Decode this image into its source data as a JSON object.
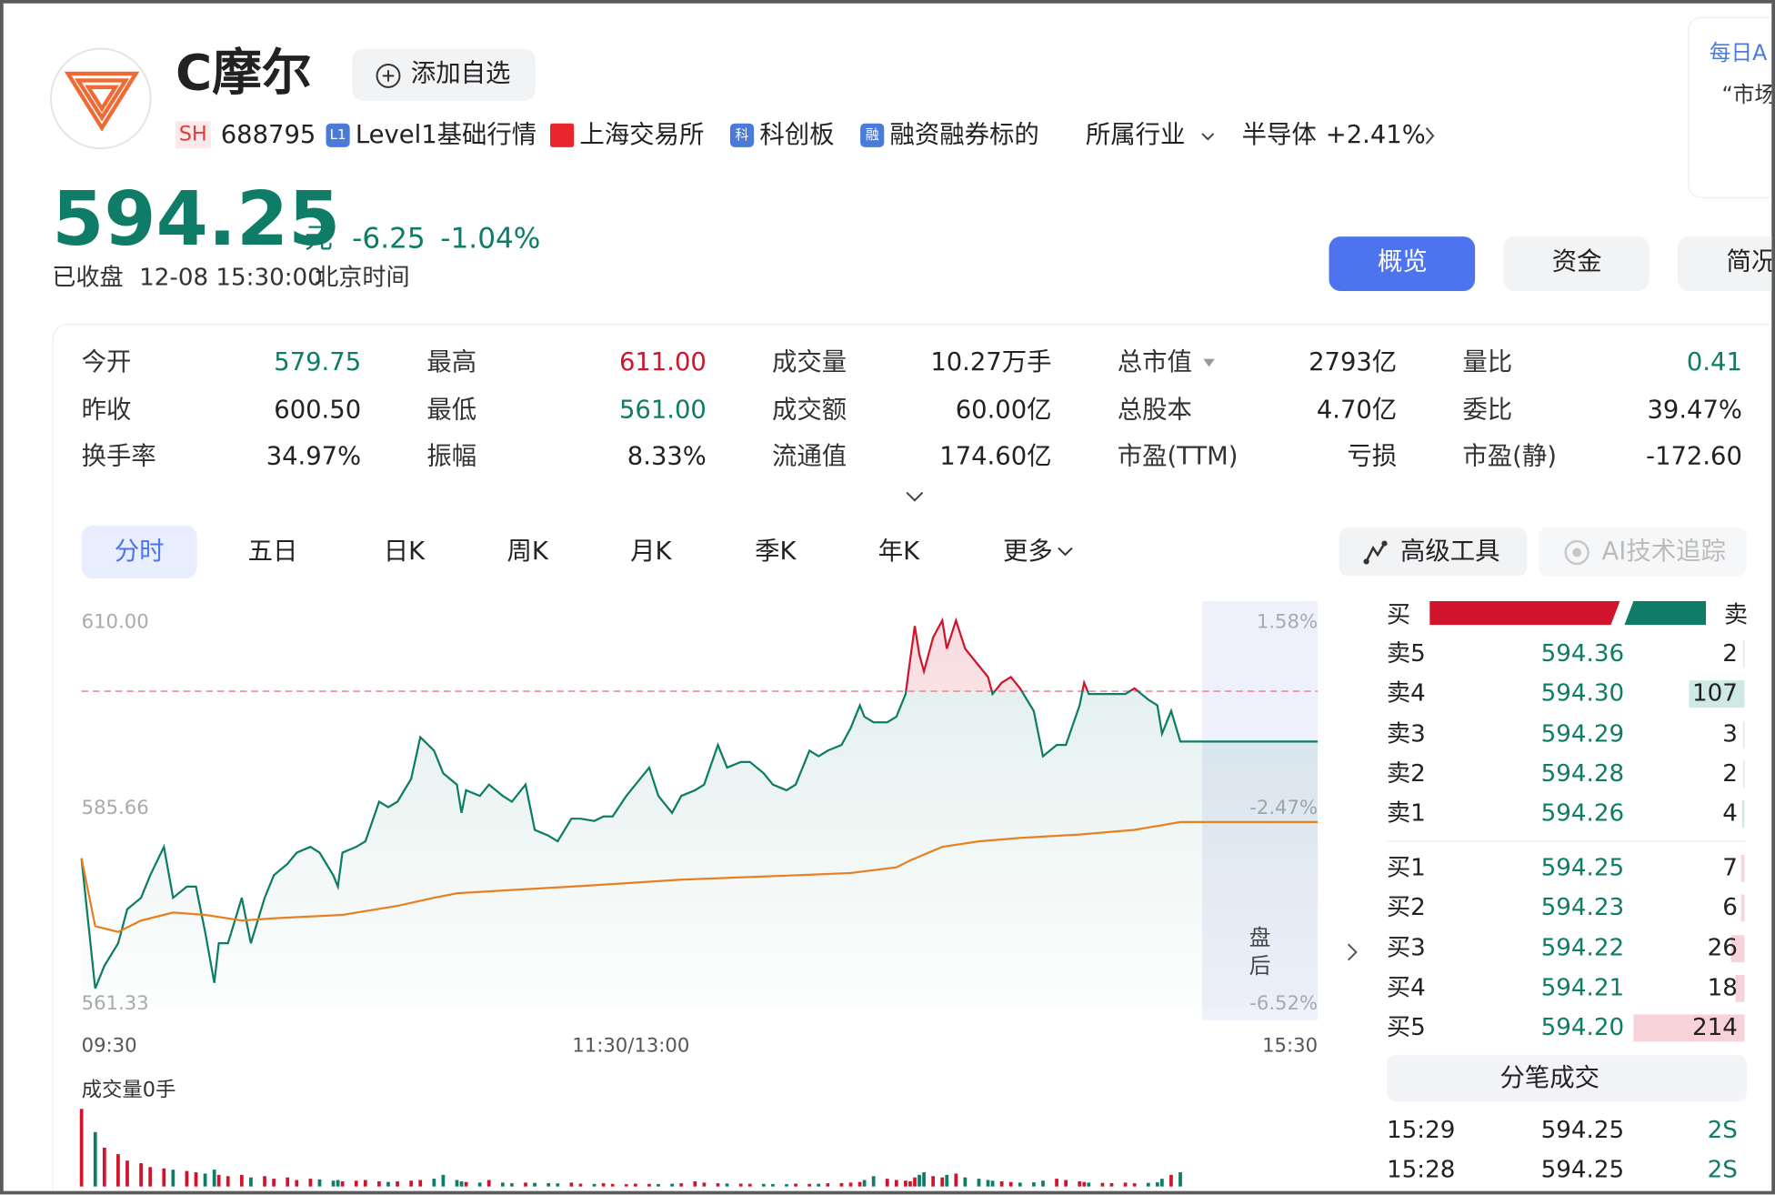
{
  "header": {
    "name": "C摩尔",
    "add_button": "添加自选",
    "exchange": "SH",
    "code": "688795",
    "tags": [
      {
        "icon": "L1",
        "text": "Level1基础行情"
      },
      {
        "icon": "",
        "text": "上海交易所"
      },
      {
        "icon": "科",
        "text": "科创板"
      },
      {
        "icon": "融",
        "text": "融资融券标的"
      }
    ],
    "industry_label": "所属行业",
    "industry": "半导体",
    "industry_change": "+2.41%"
  },
  "side_panel": {
    "title": "每日A",
    "text": "“市场"
  },
  "quote": {
    "price": "594.25",
    "unit": "元",
    "change": "-6.25",
    "change_pct": "-1.04%",
    "status": "已收盘",
    "time": "12-08 15:30:00",
    "timezone": "北京时间",
    "color": "#0e7c66"
  },
  "tabs": [
    "概览",
    "资金",
    "简况"
  ],
  "stats": [
    [
      {
        "label": "今开",
        "value": "579.75",
        "color": "#0e7c66"
      },
      {
        "label": "最高",
        "value": "611.00",
        "color": "#d0142c"
      },
      {
        "label": "成交量",
        "value": "10.27万手",
        "color": "#222"
      },
      {
        "label": "总市值",
        "value": "2793亿",
        "color": "#222"
      },
      {
        "label": "量比",
        "value": "0.41",
        "color": "#0e7c66"
      }
    ],
    [
      {
        "label": "昨收",
        "value": "600.50",
        "color": "#222"
      },
      {
        "label": "最低",
        "value": "561.00",
        "color": "#0e7c66"
      },
      {
        "label": "成交额",
        "value": "60.00亿",
        "color": "#222"
      },
      {
        "label": "总股本",
        "value": "4.70亿",
        "color": "#222"
      },
      {
        "label": "委比",
        "value": "39.47%",
        "color": "#222"
      }
    ],
    [
      {
        "label": "换手率",
        "value": "34.97%",
        "color": "#222"
      },
      {
        "label": "振幅",
        "value": "8.33%",
        "color": "#222"
      },
      {
        "label": "流通值",
        "value": "174.60亿",
        "color": "#222"
      },
      {
        "label": "市盈(TTM)",
        "value": "亏损",
        "color": "#222"
      },
      {
        "label": "市盈(静)",
        "value": "-172.60",
        "color": "#222"
      }
    ]
  ],
  "period_tabs": [
    "分时",
    "五日",
    "日K",
    "周K",
    "月K",
    "季K",
    "年K",
    "更多"
  ],
  "tools": [
    "高级工具",
    "AI技术追踪"
  ],
  "chart_data": {
    "type": "line",
    "ylim": [
      561.33,
      610
    ],
    "yticks": [
      {
        "value": 610,
        "label": "610.00"
      },
      {
        "value": 585.66,
        "label": "585.66"
      },
      {
        "value": 561.33,
        "label": "561.33"
      }
    ],
    "y2lim": [
      -6.52,
      1.58
    ],
    "y2ticks": [
      {
        "value": 1.58,
        "label": "1.58%"
      },
      {
        "value": -2.47,
        "label": "-2.47%"
      },
      {
        "value": -6.52,
        "label": "-6.52%"
      }
    ],
    "xlim": [
      0,
      270
    ],
    "xticks": [
      {
        "value": 0,
        "label": "09:30"
      },
      {
        "value": 120,
        "label": "11:30/13:00"
      },
      {
        "value": 270,
        "label": "15:30"
      }
    ],
    "reference_line": 600.5,
    "reference_color": "#f08a96",
    "after_hours_label": "盘后",
    "series": [
      {
        "color": "#0e7c66",
        "up_color": "#d0142c",
        "x": [
          0,
          3,
          5,
          8,
          10,
          13,
          15,
          18,
          20,
          23,
          25,
          27,
          29,
          30,
          32,
          35,
          37,
          40,
          42,
          45,
          47,
          50,
          52,
          55,
          56,
          57,
          60,
          62,
          65,
          67,
          69,
          72,
          74,
          77,
          79,
          82,
          83,
          84,
          87,
          89,
          92,
          94,
          97,
          99,
          102,
          104,
          107,
          109,
          112,
          114,
          116,
          119,
          121,
          124,
          126,
          129,
          131,
          134,
          136,
          139,
          141,
          144,
          146,
          149,
          151,
          154,
          156,
          159,
          161,
          163,
          166,
          168,
          170,
          171,
          173,
          176,
          178,
          180,
          181,
          182,
          183,
          184,
          186,
          188,
          189,
          191,
          193,
          196,
          198,
          199,
          201,
          203,
          205,
          208,
          210,
          213,
          215,
          218,
          219,
          220,
          223,
          225,
          228,
          230,
          233,
          235,
          236,
          238,
          240,
          270
        ],
        "values": [
          579.75,
          563.57,
          566.38,
          569.2,
          573.42,
          574.83,
          577.64,
          581.16,
          574.83,
          576.23,
          576.23,
          570.6,
          564.27,
          569.2,
          569.2,
          574.83,
          569.2,
          574.83,
          577.64,
          579.05,
          580.45,
          581.16,
          580.45,
          577.64,
          576.23,
          580.45,
          581.16,
          581.86,
          586.78,
          586.08,
          586.78,
          589.6,
          594.8,
          593.12,
          590.3,
          588.9,
          585.38,
          588.19,
          587.49,
          588.9,
          587.49,
          586.78,
          588.9,
          583.27,
          582.56,
          581.86,
          584.67,
          584.67,
          584.39,
          584.95,
          584.95,
          587.49,
          588.9,
          591.01,
          587.49,
          585.38,
          587.49,
          588.19,
          588.9,
          593.82,
          591.01,
          591.71,
          591.71,
          590.3,
          588.9,
          588.19,
          588.9,
          593.12,
          592.41,
          593.12,
          593.82,
          595.93,
          598.74,
          597.34,
          596.63,
          596.63,
          597.34,
          600.15,
          604.37,
          608.59,
          605.08,
          602.97,
          607.19,
          609.3,
          605.78,
          609.3,
          605.78,
          603.67,
          602.26,
          600.15,
          601.56,
          602.26,
          600.85,
          598.04,
          592.41,
          593.82,
          593.82,
          598.74,
          601.56,
          600.15,
          600.15,
          600.15,
          600.15,
          600.85,
          599.45,
          598.74,
          595.23,
          598.04,
          594.25,
          594.25
        ]
      },
      {
        "color": "#e8801f",
        "x": [
          0,
          3,
          8,
          13,
          20,
          27,
          35,
          42,
          57,
          69,
          77,
          82,
          94,
          107,
          119,
          131,
          144,
          156,
          168,
          178,
          181,
          188,
          196,
          205,
          218,
          230,
          240,
          270
        ],
        "values": [
          579.75,
          571.31,
          570.6,
          572.01,
          573,
          572.71,
          572.01,
          572.29,
          572.71,
          573.84,
          574.83,
          575.39,
          575.81,
          576.23,
          576.65,
          577.08,
          577.36,
          577.64,
          577.92,
          578.62,
          579.47,
          581.16,
          581.86,
          582.28,
          582.7,
          583.27,
          584.25,
          584.25
        ]
      }
    ],
    "volume": {
      "label": "成交量0手",
      "ylim": [
        0,
        7000
      ],
      "up_color": "#d0142c",
      "down_color": "#0e7c66",
      "x": [
        0,
        3,
        5,
        8,
        10,
        13,
        15,
        18,
        20,
        23,
        25,
        27,
        29,
        30,
        32,
        35,
        37,
        40,
        42,
        45,
        47,
        50,
        52,
        55,
        56,
        57,
        60,
        62,
        65,
        67,
        69,
        72,
        74,
        77,
        79,
        82,
        83,
        84,
        87,
        89,
        92,
        94,
        97,
        99,
        102,
        104,
        107,
        109,
        112,
        114,
        116,
        119,
        121,
        124,
        126,
        129,
        131,
        134,
        136,
        139,
        141,
        144,
        146,
        149,
        151,
        154,
        156,
        159,
        161,
        163,
        166,
        168,
        170,
        171,
        173,
        176,
        178,
        180,
        181,
        182,
        183,
        184,
        186,
        188,
        189,
        191,
        193,
        196,
        198,
        199,
        201,
        203,
        205,
        208,
        210,
        213,
        215,
        218,
        219,
        220,
        223,
        225,
        228,
        230,
        233,
        235,
        236,
        238,
        240
      ],
      "values": [
        6000,
        4200,
        3000,
        2500,
        2000,
        1800,
        1500,
        1400,
        1300,
        1200,
        1100,
        1000,
        1300,
        900,
        800,
        900,
        700,
        800,
        600,
        700,
        500,
        600,
        550,
        450,
        500,
        400,
        450,
        500,
        400,
        350,
        400,
        450,
        500,
        600,
        900,
        500,
        400,
        350,
        300,
        500,
        300,
        250,
        300,
        280,
        260,
        240,
        300,
        220,
        200,
        250,
        200,
        180,
        220,
        200,
        190,
        210,
        250,
        400,
        300,
        250,
        230,
        220,
        210,
        200,
        190,
        180,
        220,
        200,
        210,
        250,
        260,
        300,
        350,
        500,
        800,
        600,
        500,
        450,
        400,
        700,
        900,
        1100,
        800,
        700,
        900,
        1000,
        700,
        600,
        500,
        450,
        400,
        350,
        300,
        320,
        450,
        600,
        500,
        400,
        350,
        300,
        280,
        260,
        300,
        250,
        280,
        320,
        600,
        900,
        1100
      ]
    }
  },
  "order_book": {
    "buy": "买",
    "sell": "卖",
    "ask_bar_color": "#cfe9e4",
    "bid_bar_color": "#f8d3d9",
    "asks": [
      {
        "label": "卖5",
        "price": "594.36",
        "qty": 2
      },
      {
        "label": "卖4",
        "price": "594.30",
        "qty": 107
      },
      {
        "label": "卖3",
        "price": "594.29",
        "qty": 3
      },
      {
        "label": "卖2",
        "price": "594.28",
        "qty": 2
      },
      {
        "label": "卖1",
        "price": "594.26",
        "qty": 4
      }
    ],
    "bids": [
      {
        "label": "买1",
        "price": "594.25",
        "qty": 7
      },
      {
        "label": "买2",
        "price": "594.23",
        "qty": 6
      },
      {
        "label": "买3",
        "price": "594.22",
        "qty": 26
      },
      {
        "label": "买4",
        "price": "594.21",
        "qty": 18
      },
      {
        "label": "买5",
        "price": "594.20",
        "qty": 214
      }
    ]
  },
  "trades": {
    "title": "分笔成交",
    "rows": [
      {
        "time": "15:29",
        "price": "594.25",
        "volume": "2S"
      },
      {
        "time": "15:28",
        "price": "594.25",
        "volume": "2S"
      }
    ]
  }
}
